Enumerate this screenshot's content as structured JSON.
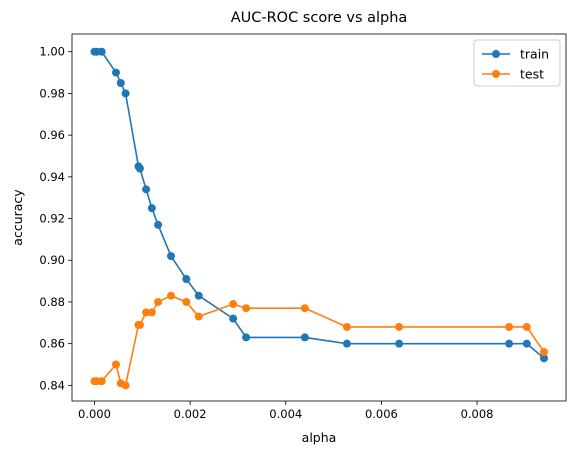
{
  "chart_data": {
    "type": "line",
    "title": "AUC-ROC score vs alpha",
    "xlabel": "alpha",
    "ylabel": "accuracy",
    "xlim": [
      -0.00047,
      0.00986
    ],
    "ylim": [
      0.8325,
      1.0085
    ],
    "xticks": [
      0.0,
      0.002,
      0.004,
      0.006,
      0.008
    ],
    "xtick_labels": [
      "0.000",
      "0.002",
      "0.004",
      "0.006",
      "0.008"
    ],
    "yticks": [
      0.84,
      0.86,
      0.88,
      0.9,
      0.92,
      0.94,
      0.96,
      0.98,
      1.0
    ],
    "ytick_labels": [
      "0.84",
      "0.86",
      "0.88",
      "0.90",
      "0.92",
      "0.94",
      "0.96",
      "0.98",
      "1.00"
    ],
    "grid": false,
    "legend_position": "top-right",
    "markers": true,
    "series": [
      {
        "name": "train",
        "color": "#1f77b4",
        "x": [
          0.0,
          5e-05,
          0.00015,
          0.00045,
          0.00055,
          0.00065,
          0.00092,
          0.00095,
          0.00108,
          0.0012,
          0.00133,
          0.0016,
          0.00192,
          0.00218,
          0.0029,
          0.00317,
          0.0044,
          0.00528,
          0.00637,
          0.00867,
          0.00904,
          0.0094
        ],
        "y": [
          1.0,
          1.0,
          1.0,
          0.99,
          0.985,
          0.98,
          0.945,
          0.944,
          0.934,
          0.925,
          0.917,
          0.902,
          0.891,
          0.883,
          0.872,
          0.863,
          0.863,
          0.86,
          0.86,
          0.86,
          0.86,
          0.853
        ]
      },
      {
        "name": "test",
        "color": "#ff7f0e",
        "x": [
          0.0,
          5e-05,
          0.00015,
          0.00045,
          0.00055,
          0.00065,
          0.00092,
          0.00095,
          0.00108,
          0.0012,
          0.00133,
          0.0016,
          0.00192,
          0.00218,
          0.0029,
          0.00317,
          0.0044,
          0.00528,
          0.00637,
          0.00867,
          0.00904,
          0.0094
        ],
        "y": [
          0.842,
          0.842,
          0.842,
          0.85,
          0.841,
          0.84,
          0.869,
          0.869,
          0.875,
          0.875,
          0.88,
          0.883,
          0.88,
          0.873,
          0.879,
          0.877,
          0.877,
          0.868,
          0.868,
          0.868,
          0.868,
          0.856
        ]
      }
    ]
  }
}
